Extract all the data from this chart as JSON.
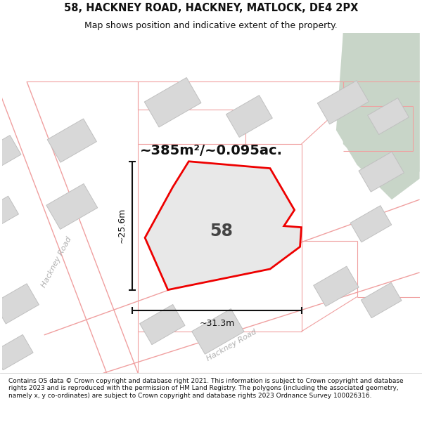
{
  "title": "58, HACKNEY ROAD, HACKNEY, MATLOCK, DE4 2PX",
  "subtitle": "Map shows position and indicative extent of the property.",
  "area_label": "~385m²/~0.095ac.",
  "number_label": "58",
  "dim_width": "~31.3m",
  "dim_height": "~25.6m",
  "road_label_1": "Hackney Road",
  "road_label_2": "Hackney Road",
  "footer_text": "Contains OS data © Crown copyright and database right 2021. This information is subject to Crown copyright and database rights 2023 and is reproduced with the permission of HM Land Registry. The polygons (including the associated geometry, namely x, y co-ordinates) are subject to Crown copyright and database rights 2023 Ordnance Survey 100026316.",
  "map_bg": "#eeebe8",
  "road_fill": "#ffffff",
  "road_line_color": "#f0a0a0",
  "building_fill": "#d8d8d8",
  "building_edge": "#c0c0c0",
  "plot_fill": "#e8e8e8",
  "plot_edge": "#ee0000",
  "green_fill": "#c8d5c8",
  "footer_bg": "#ffffff",
  "header_bg": "#ffffff",
  "dim_color": "#111111",
  "label_color": "#111111",
  "road_text_color": "#b0b0b0",
  "title_fontsize": 10.5,
  "subtitle_fontsize": 9,
  "area_fontsize": 14,
  "number_fontsize": 17,
  "dim_fontsize": 9,
  "road_fontsize": 8,
  "footer_fontsize": 6.5
}
